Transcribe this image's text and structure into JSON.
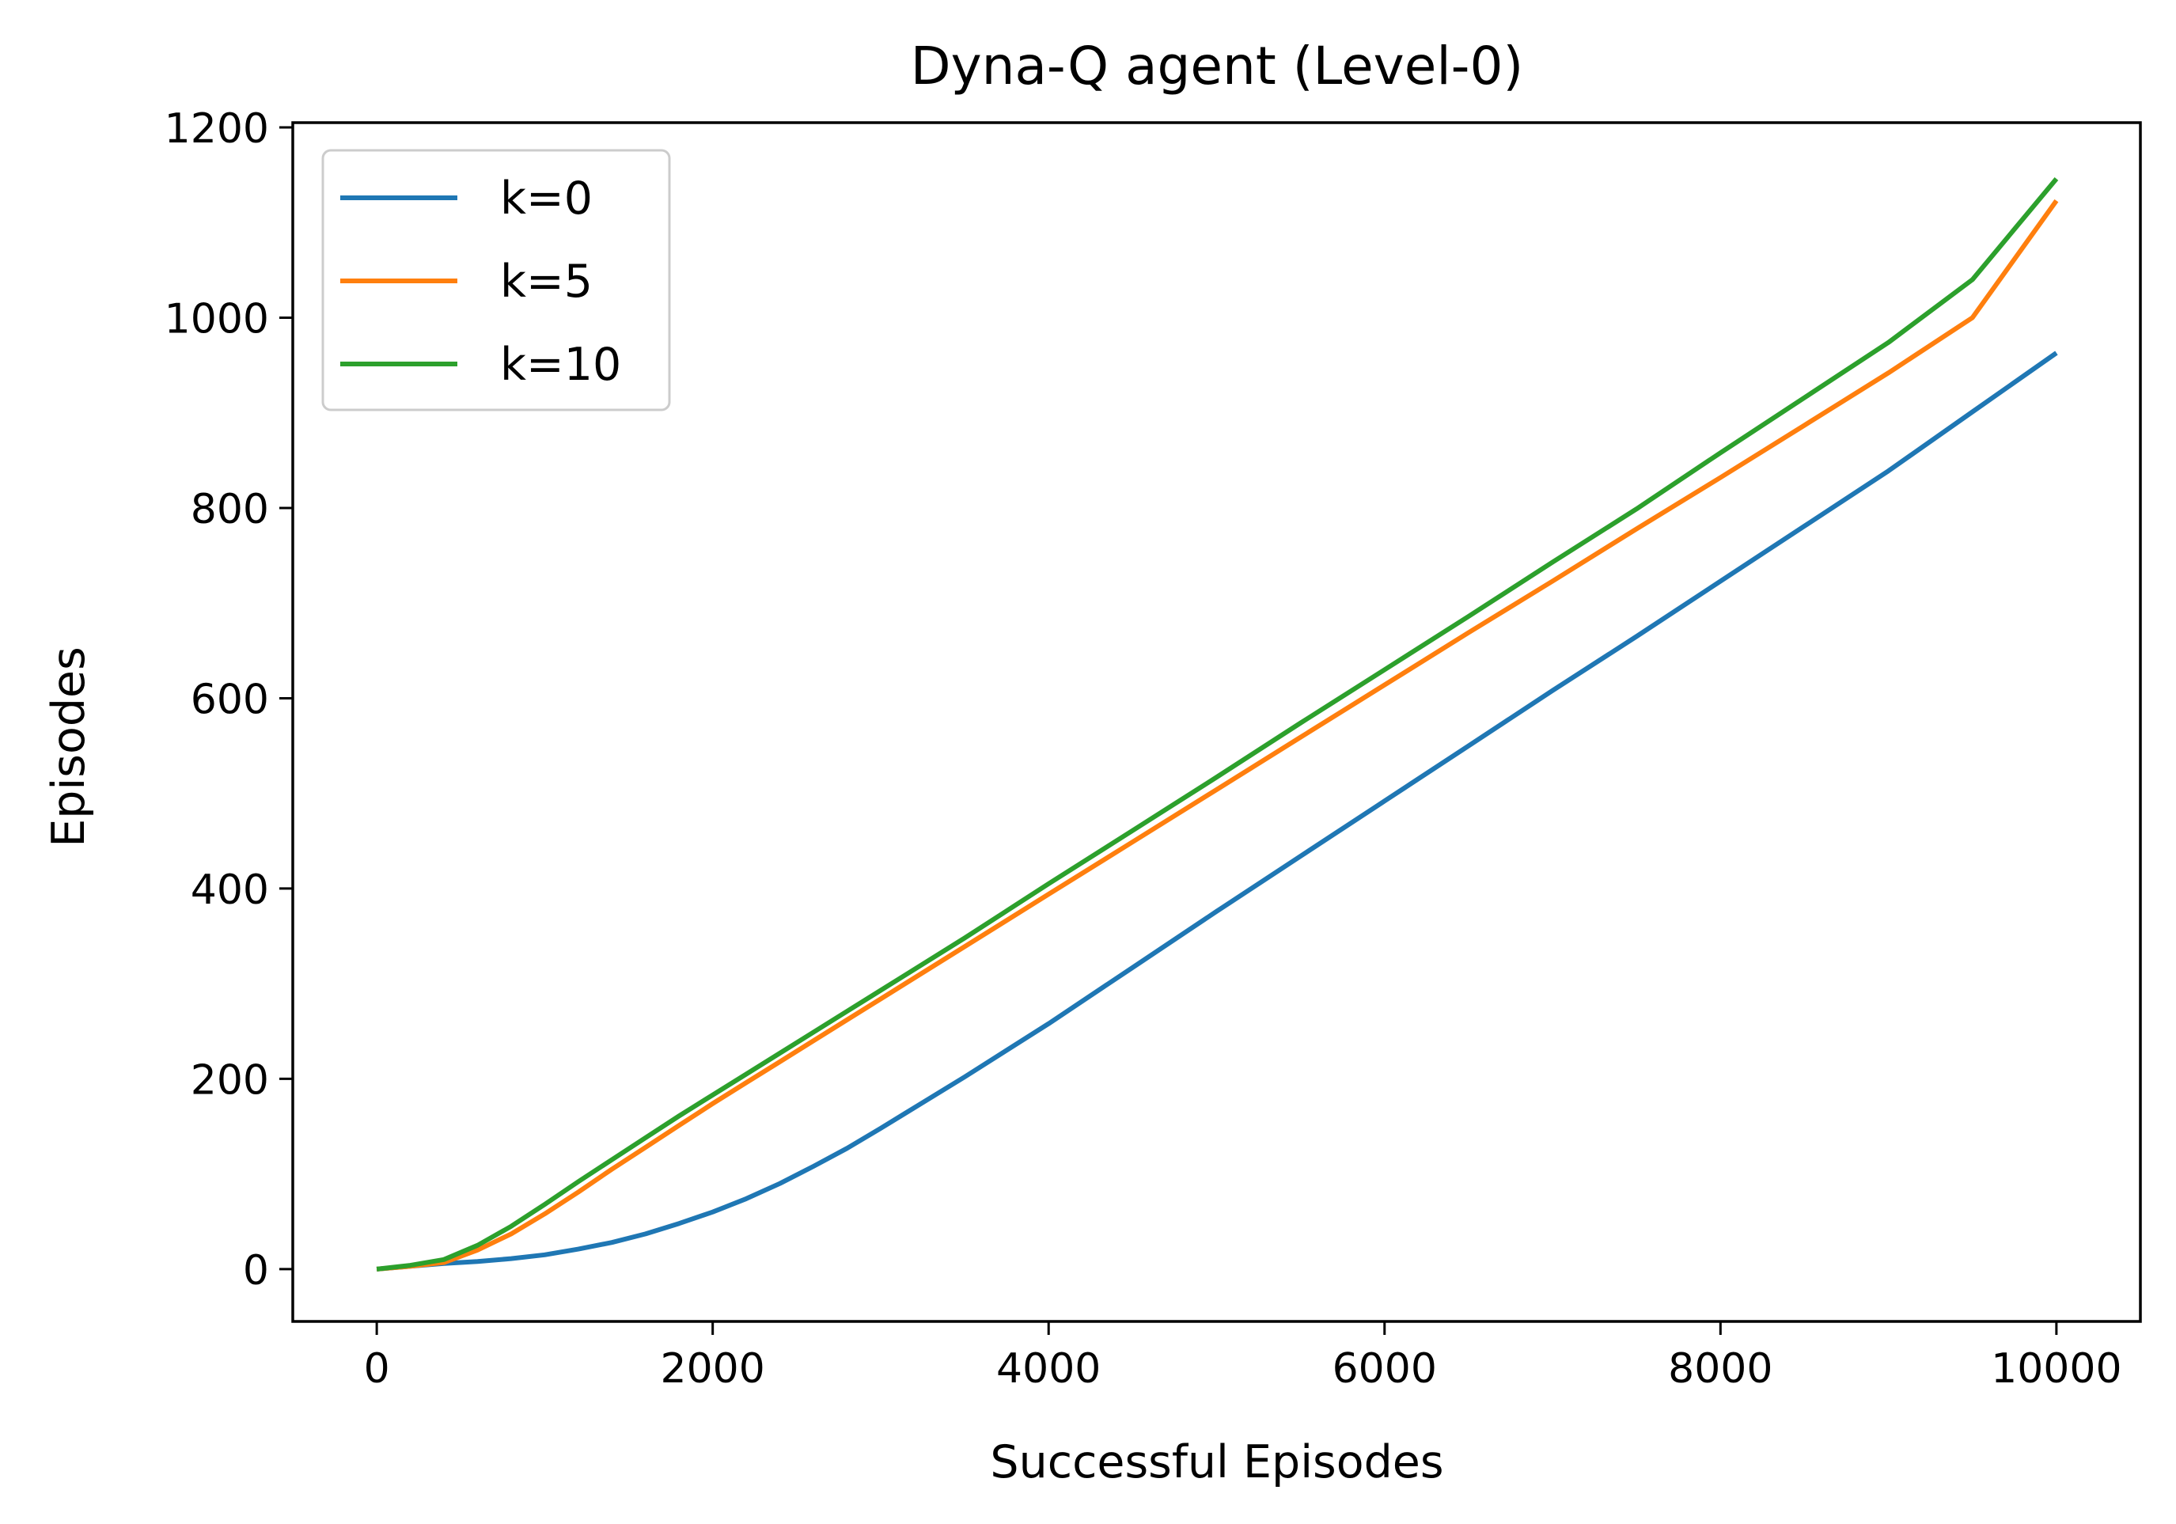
{
  "chart_data": {
    "type": "line",
    "title": "Dyna-Q agent (Level-0)",
    "xlabel": "Successful Episodes",
    "ylabel": "Episodes",
    "xlim": [
      -500,
      10500
    ],
    "ylim": [
      -55,
      1205
    ],
    "xticks": [
      0,
      2000,
      4000,
      6000,
      8000,
      10000
    ],
    "xtick_labels": [
      "0",
      "2000",
      "4000",
      "6000",
      "8000",
      "10000"
    ],
    "yticks": [
      0,
      200,
      400,
      600,
      800,
      1000,
      1200
    ],
    "ytick_labels": [
      "0",
      "200",
      "400",
      "600",
      "800",
      "1000",
      "1200"
    ],
    "grid": false,
    "legend": {
      "position": "top-left"
    },
    "x": [
      0,
      200,
      400,
      600,
      800,
      1000,
      1200,
      1400,
      1600,
      1800,
      2000,
      2200,
      2400,
      2600,
      2800,
      3000,
      3500,
      4000,
      4500,
      5000,
      5500,
      6000,
      6500,
      7000,
      7500,
      8000,
      8500,
      9000,
      9500,
      10000
    ],
    "series": [
      {
        "name": "k=0",
        "color": "#1f77b4",
        "values": [
          0,
          3,
          6,
          8,
          11,
          15,
          21,
          28,
          37,
          48,
          60,
          74,
          90,
          108,
          127,
          148,
          202,
          258,
          317,
          376,
          434,
          492,
          550,
          608,
          665,
          723,
          781,
          839,
          901,
          963
        ]
      },
      {
        "name": "k=5",
        "color": "#ff7f0e",
        "values": [
          0,
          3,
          7,
          20,
          37,
          58,
          81,
          105,
          128,
          151,
          174,
          196,
          218,
          240,
          262,
          284,
          339,
          394,
          449,
          504,
          559,
          614,
          669,
          723,
          778,
          832,
          887,
          942,
          1000,
          1123
        ]
      },
      {
        "name": "k=10",
        "color": "#2ca02c",
        "values": [
          0,
          4,
          10,
          25,
          45,
          68,
          92,
          115,
          138,
          161,
          183,
          205,
          227,
          249,
          271,
          293,
          348,
          405,
          461,
          517,
          574,
          630,
          686,
          743,
          799,
          858,
          916,
          974,
          1040,
          1146
        ]
      }
    ]
  }
}
